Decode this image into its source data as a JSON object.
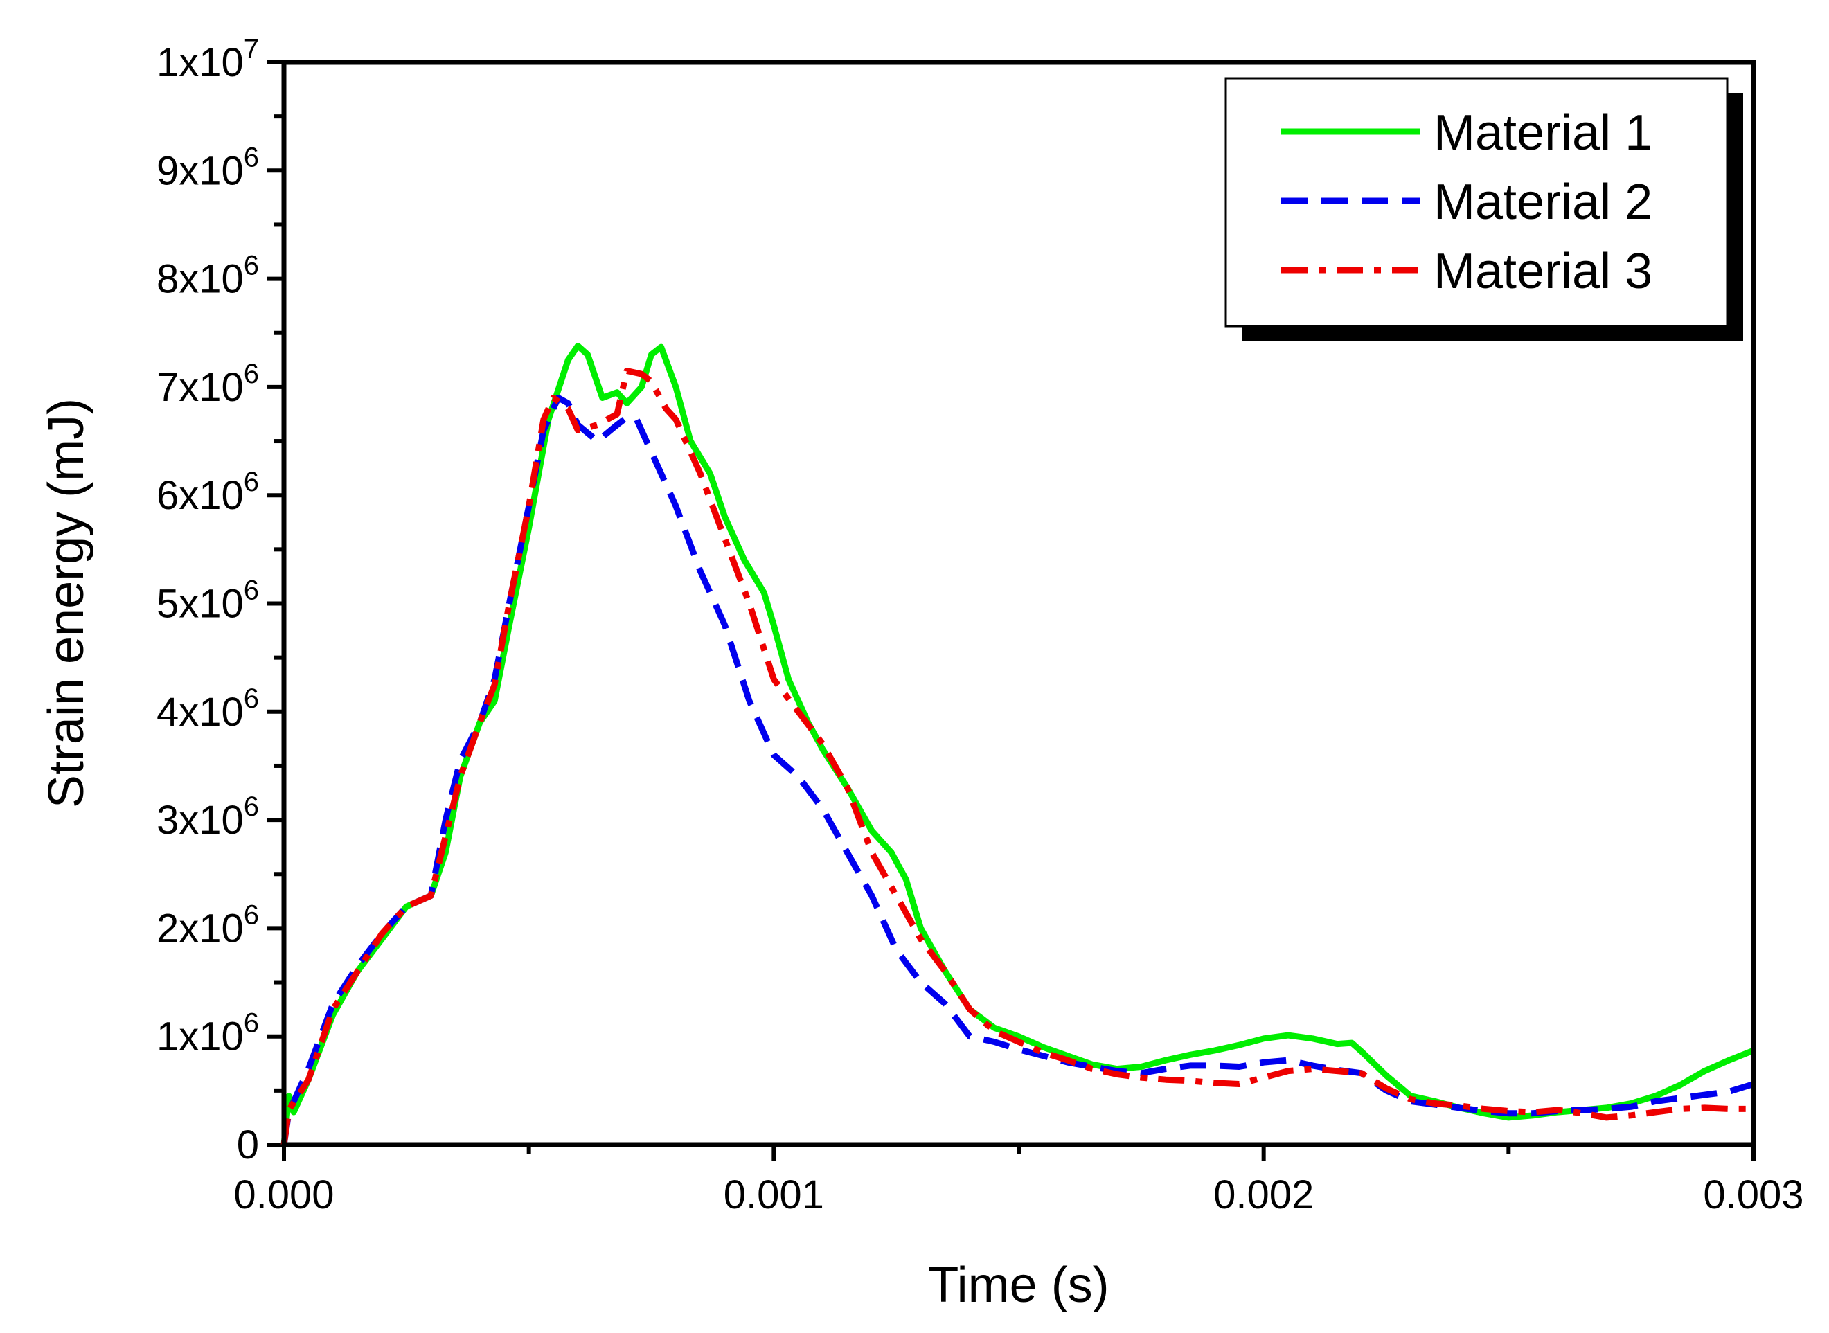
{
  "chart_data": {
    "type": "line",
    "title": "",
    "xlabel": "Time (s)",
    "ylabel": "Strain energy (mJ)",
    "xlim": [
      0,
      0.003
    ],
    "ylim": [
      0,
      10000000
    ],
    "legend_position": "top-right",
    "grid": false,
    "x_major_ticks": [
      0,
      0.001,
      0.002,
      0.003
    ],
    "x_tick_labels": [
      "0.000",
      "0.001",
      "0.002",
      "0.003"
    ],
    "y_major_ticks": [
      0,
      1000000,
      2000000,
      3000000,
      4000000,
      5000000,
      6000000,
      7000000,
      8000000,
      9000000,
      10000000
    ],
    "y_tick_labels": [
      {
        "base": "0",
        "exp": ""
      },
      {
        "base": "1x10",
        "exp": "6"
      },
      {
        "base": "2x10",
        "exp": "6"
      },
      {
        "base": "3x10",
        "exp": "6"
      },
      {
        "base": "4x10",
        "exp": "6"
      },
      {
        "base": "5x10",
        "exp": "6"
      },
      {
        "base": "6x10",
        "exp": "6"
      },
      {
        "base": "7x10",
        "exp": "6"
      },
      {
        "base": "8x10",
        "exp": "6"
      },
      {
        "base": "9x10",
        "exp": "6"
      },
      {
        "base": "1x10",
        "exp": "7"
      }
    ],
    "series": [
      {
        "name": "Material 1",
        "color": "#00ee00",
        "dash": "solid",
        "points": [
          [
            0,
            0
          ],
          [
            1e-05,
            450000
          ],
          [
            2e-05,
            300000
          ],
          [
            5e-05,
            600000
          ],
          [
            0.0001,
            1200000
          ],
          [
            0.00015,
            1600000
          ],
          [
            0.0002,
            1900000
          ],
          [
            0.00025,
            2200000
          ],
          [
            0.0003,
            2300000
          ],
          [
            0.00033,
            2700000
          ],
          [
            0.00036,
            3400000
          ],
          [
            0.0004,
            3900000
          ],
          [
            0.00043,
            4100000
          ],
          [
            0.00046,
            4800000
          ],
          [
            0.0005,
            5700000
          ],
          [
            0.00054,
            6700000
          ],
          [
            0.00058,
            7250000
          ],
          [
            0.0006,
            7380000
          ],
          [
            0.00062,
            7300000
          ],
          [
            0.00065,
            6900000
          ],
          [
            0.00068,
            6950000
          ],
          [
            0.0007,
            6850000
          ],
          [
            0.00073,
            7000000
          ],
          [
            0.00075,
            7300000
          ],
          [
            0.00077,
            7370000
          ],
          [
            0.0008,
            7000000
          ],
          [
            0.00083,
            6500000
          ],
          [
            0.00087,
            6200000
          ],
          [
            0.0009,
            5800000
          ],
          [
            0.00094,
            5400000
          ],
          [
            0.00098,
            5100000
          ],
          [
            0.001,
            4800000
          ],
          [
            0.00103,
            4300000
          ],
          [
            0.00107,
            3900000
          ],
          [
            0.0011,
            3650000
          ],
          [
            0.00115,
            3300000
          ],
          [
            0.0012,
            2900000
          ],
          [
            0.00124,
            2700000
          ],
          [
            0.00127,
            2450000
          ],
          [
            0.0013,
            2000000
          ],
          [
            0.00135,
            1600000
          ],
          [
            0.0014,
            1250000
          ],
          [
            0.00145,
            1080000
          ],
          [
            0.0015,
            1000000
          ],
          [
            0.00155,
            900000
          ],
          [
            0.0016,
            820000
          ],
          [
            0.00165,
            740000
          ],
          [
            0.0017,
            700000
          ],
          [
            0.00175,
            720000
          ],
          [
            0.0018,
            780000
          ],
          [
            0.00185,
            830000
          ],
          [
            0.0019,
            870000
          ],
          [
            0.00195,
            920000
          ],
          [
            0.002,
            980000
          ],
          [
            0.00205,
            1010000
          ],
          [
            0.0021,
            980000
          ],
          [
            0.00215,
            930000
          ],
          [
            0.00218,
            940000
          ],
          [
            0.0022,
            860000
          ],
          [
            0.00225,
            640000
          ],
          [
            0.0023,
            450000
          ],
          [
            0.00235,
            400000
          ],
          [
            0.0024,
            340000
          ],
          [
            0.00245,
            290000
          ],
          [
            0.0025,
            250000
          ],
          [
            0.00255,
            270000
          ],
          [
            0.0026,
            300000
          ],
          [
            0.00265,
            320000
          ],
          [
            0.0027,
            340000
          ],
          [
            0.00275,
            380000
          ],
          [
            0.0028,
            450000
          ],
          [
            0.00285,
            550000
          ],
          [
            0.0029,
            680000
          ],
          [
            0.00295,
            780000
          ],
          [
            0.003,
            870000
          ]
        ]
      },
      {
        "name": "Material 2",
        "color": "#0000ee",
        "dash": "dashed",
        "points": [
          [
            0,
            0
          ],
          [
            1e-05,
            300000
          ],
          [
            5e-05,
            700000
          ],
          [
            0.0001,
            1300000
          ],
          [
            0.00015,
            1650000
          ],
          [
            0.0002,
            1950000
          ],
          [
            0.00025,
            2200000
          ],
          [
            0.0003,
            2300000
          ],
          [
            0.00033,
            3000000
          ],
          [
            0.00036,
            3550000
          ],
          [
            0.0004,
            3900000
          ],
          [
            0.00043,
            4300000
          ],
          [
            0.00046,
            5000000
          ],
          [
            0.0005,
            5900000
          ],
          [
            0.00053,
            6600000
          ],
          [
            0.00056,
            6900000
          ],
          [
            0.00058,
            6850000
          ],
          [
            0.0006,
            6650000
          ],
          [
            0.00064,
            6500000
          ],
          [
            0.00068,
            6650000
          ],
          [
            0.0007,
            6720000
          ],
          [
            0.00072,
            6700000
          ],
          [
            0.00075,
            6400000
          ],
          [
            0.0008,
            5900000
          ],
          [
            0.00085,
            5300000
          ],
          [
            0.0009,
            4800000
          ],
          [
            0.00095,
            4100000
          ],
          [
            0.001,
            3600000
          ],
          [
            0.00105,
            3400000
          ],
          [
            0.0011,
            3100000
          ],
          [
            0.00115,
            2700000
          ],
          [
            0.0012,
            2300000
          ],
          [
            0.00125,
            1800000
          ],
          [
            0.0013,
            1500000
          ],
          [
            0.00135,
            1300000
          ],
          [
            0.0014,
            1000000
          ],
          [
            0.00145,
            950000
          ],
          [
            0.0015,
            880000
          ],
          [
            0.00155,
            820000
          ],
          [
            0.0016,
            760000
          ],
          [
            0.00165,
            720000
          ],
          [
            0.0017,
            680000
          ],
          [
            0.00175,
            660000
          ],
          [
            0.0018,
            700000
          ],
          [
            0.00185,
            730000
          ],
          [
            0.0019,
            730000
          ],
          [
            0.00195,
            720000
          ],
          [
            0.002,
            760000
          ],
          [
            0.00205,
            780000
          ],
          [
            0.0021,
            730000
          ],
          [
            0.00215,
            690000
          ],
          [
            0.0022,
            660000
          ],
          [
            0.00225,
            500000
          ],
          [
            0.0023,
            400000
          ],
          [
            0.00235,
            370000
          ],
          [
            0.0024,
            340000
          ],
          [
            0.00245,
            310000
          ],
          [
            0.0025,
            290000
          ],
          [
            0.00255,
            290000
          ],
          [
            0.0026,
            310000
          ],
          [
            0.00265,
            320000
          ],
          [
            0.0027,
            330000
          ],
          [
            0.00275,
            350000
          ],
          [
            0.0028,
            400000
          ],
          [
            0.00285,
            430000
          ],
          [
            0.0029,
            460000
          ],
          [
            0.00295,
            490000
          ],
          [
            0.003,
            560000
          ]
        ]
      },
      {
        "name": "Material 3",
        "color": "#ee0000",
        "dash": "dash-dot",
        "points": [
          [
            0,
            0
          ],
          [
            1e-05,
            320000
          ],
          [
            5e-05,
            600000
          ],
          [
            0.0001,
            1250000
          ],
          [
            0.00015,
            1600000
          ],
          [
            0.0002,
            1950000
          ],
          [
            0.00025,
            2200000
          ],
          [
            0.0003,
            2300000
          ],
          [
            0.00033,
            2850000
          ],
          [
            0.00036,
            3400000
          ],
          [
            0.0004,
            3900000
          ],
          [
            0.00043,
            4250000
          ],
          [
            0.00046,
            5000000
          ],
          [
            0.0005,
            5900000
          ],
          [
            0.00053,
            6700000
          ],
          [
            0.00055,
            6900000
          ],
          [
            0.00058,
            6800000
          ],
          [
            0.0006,
            6600000
          ],
          [
            0.00064,
            6650000
          ],
          [
            0.00068,
            6750000
          ],
          [
            0.0007,
            7150000
          ],
          [
            0.00073,
            7120000
          ],
          [
            0.00075,
            7050000
          ],
          [
            0.00078,
            6800000
          ],
          [
            0.0008,
            6700000
          ],
          [
            0.00085,
            6200000
          ],
          [
            0.0009,
            5600000
          ],
          [
            0.00095,
            5000000
          ],
          [
            0.001,
            4300000
          ],
          [
            0.00105,
            4000000
          ],
          [
            0.0011,
            3700000
          ],
          [
            0.00115,
            3300000
          ],
          [
            0.0012,
            2700000
          ],
          [
            0.00125,
            2300000
          ],
          [
            0.0013,
            1900000
          ],
          [
            0.00135,
            1600000
          ],
          [
            0.0014,
            1250000
          ],
          [
            0.00145,
            1050000
          ],
          [
            0.0015,
            950000
          ],
          [
            0.00155,
            850000
          ],
          [
            0.0016,
            780000
          ],
          [
            0.00165,
            700000
          ],
          [
            0.0017,
            650000
          ],
          [
            0.00175,
            620000
          ],
          [
            0.0018,
            600000
          ],
          [
            0.00185,
            590000
          ],
          [
            0.0019,
            570000
          ],
          [
            0.00195,
            560000
          ],
          [
            0.002,
            620000
          ],
          [
            0.00205,
            680000
          ],
          [
            0.0021,
            700000
          ],
          [
            0.00215,
            680000
          ],
          [
            0.0022,
            660000
          ],
          [
            0.00225,
            520000
          ],
          [
            0.0023,
            420000
          ],
          [
            0.00235,
            380000
          ],
          [
            0.0024,
            360000
          ],
          [
            0.00245,
            330000
          ],
          [
            0.0025,
            310000
          ],
          [
            0.00255,
            300000
          ],
          [
            0.0026,
            320000
          ],
          [
            0.00265,
            290000
          ],
          [
            0.0027,
            250000
          ],
          [
            0.00275,
            270000
          ],
          [
            0.0028,
            300000
          ],
          [
            0.00285,
            330000
          ],
          [
            0.0029,
            340000
          ],
          [
            0.00295,
            330000
          ],
          [
            0.003,
            330000
          ]
        ]
      }
    ]
  }
}
